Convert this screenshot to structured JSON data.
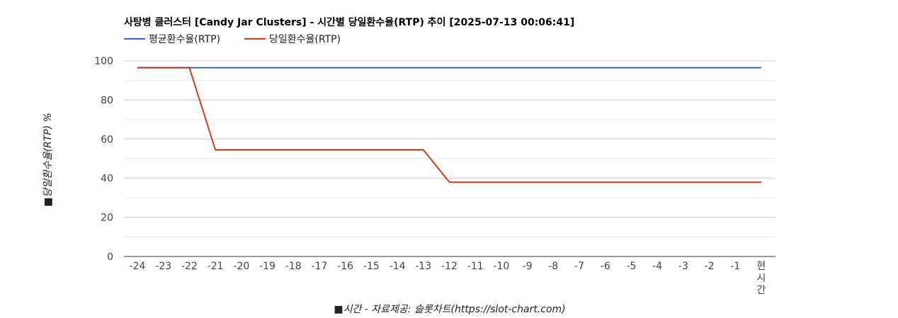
{
  "chart_data": {
    "type": "line",
    "title": "사탕병 클러스터 [Candy Jar Clusters] - 시간별 당일환수율(RTP) 추이 [2025-07-13 00:06:41]",
    "xlabel": "■시간 - 자료제공: 슬롯차트(https://slot-chart.com)",
    "ylabel": "■당일환수율(RTP) %",
    "categories": [
      "-24",
      "-23",
      "-22",
      "-21",
      "-20",
      "-19",
      "-18",
      "-17",
      "-16",
      "-15",
      "-14",
      "-13",
      "-12",
      "-11",
      "-10",
      "-9",
      "-8",
      "-7",
      "-6",
      "-5",
      "-4",
      "-3",
      "-2",
      "-1",
      "현시간"
    ],
    "series": [
      {
        "name": "평균환수율(RTP)",
        "color": "#3366cc",
        "values": [
          96.5,
          96.5,
          96.5,
          96.5,
          96.5,
          96.5,
          96.5,
          96.5,
          96.5,
          96.5,
          96.5,
          96.5,
          96.5,
          96.5,
          96.5,
          96.5,
          96.5,
          96.5,
          96.5,
          96.5,
          96.5,
          96.5,
          96.5,
          96.5,
          96.5
        ]
      },
      {
        "name": "당일환수율(RTP)",
        "color": "#dc3912",
        "values": [
          96.5,
          96.5,
          96.5,
          54.5,
          54.5,
          54.5,
          54.5,
          54.5,
          54.5,
          54.5,
          54.5,
          54.5,
          38,
          38,
          38,
          38,
          38,
          38,
          38,
          38,
          38,
          38,
          38,
          38,
          38
        ]
      }
    ],
    "yticks": [
      0,
      20,
      40,
      60,
      80,
      100
    ],
    "ylim": [
      0,
      100
    ],
    "grid": true,
    "legend_position": "top-left"
  }
}
